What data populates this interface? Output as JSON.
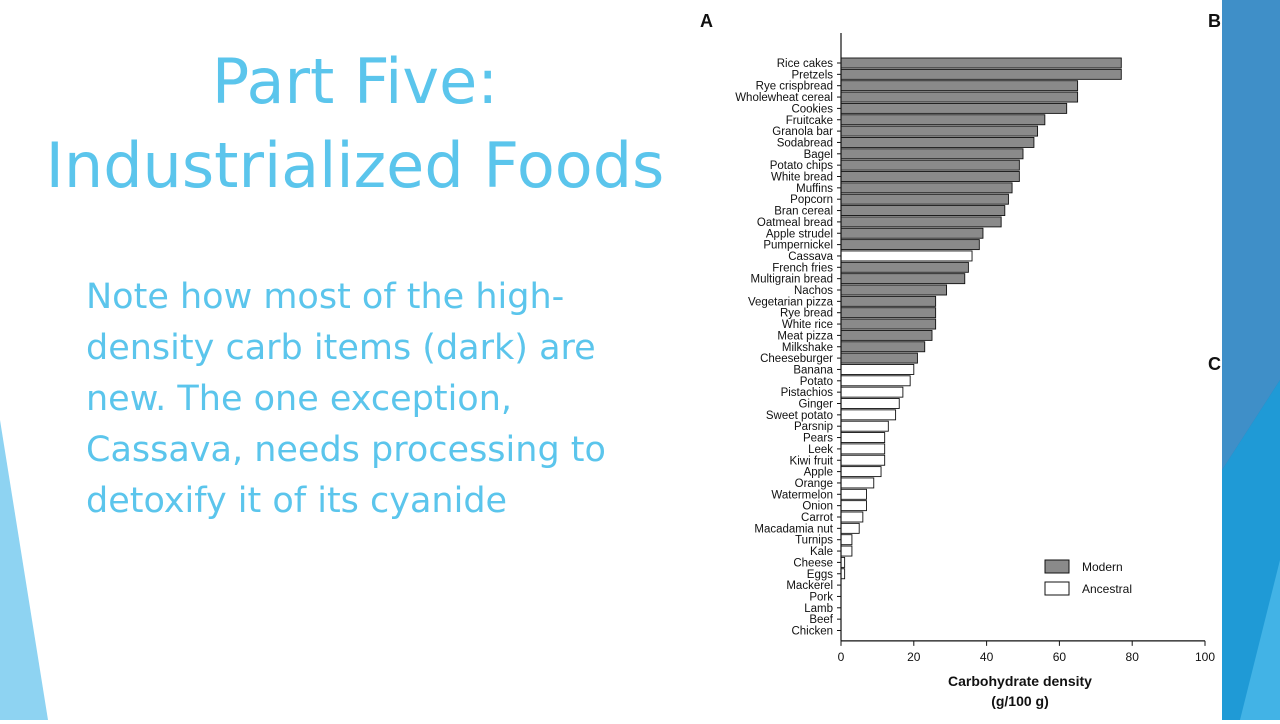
{
  "slide": {
    "title_line1": "Part Five:",
    "title_line2": "Industrialized Foods",
    "body": "Note how most of the high-density carb items (dark) are new. The one exception, Cassava, needs processing to detoxify it of its cyanide"
  },
  "theme": {
    "text_color": "#5BC5EC",
    "accent_dark": "#1F6FA8",
    "accent_light": "#7FD0F0"
  },
  "chart_data": {
    "type": "bar",
    "orientation": "horizontal",
    "panel_labels": [
      "A",
      "B",
      "C"
    ],
    "xlabel_line1": "Carbohydrate density",
    "xlabel_line2": "(g/100 g)",
    "xlim": [
      0,
      100
    ],
    "xticks": [
      "0",
      "20",
      "40",
      "60",
      "80",
      "100"
    ],
    "legend": [
      {
        "name": "Modern",
        "color": "#8a8a8a"
      },
      {
        "name": "Ancestral",
        "color": "#ffffff"
      }
    ],
    "legend_position": "bottom-right",
    "series_colors": {
      "Modern": "#8a8a8a",
      "Ancestral": "#ffffff"
    },
    "categories": [
      "Rice cakes",
      "Pretzels",
      "Rye crispbread",
      "Wholewheat cereal",
      "Cookies",
      "Fruitcake",
      "Granola bar",
      "Sodabread",
      "Bagel",
      "Potato chips",
      "White bread",
      "Muffins",
      "Popcorn",
      "Bran cereal",
      "Oatmeal bread",
      "Apple strudel",
      "Pumpernickel",
      "Cassava",
      "French fries",
      "Multigrain bread",
      "Nachos",
      "Vegetarian pizza",
      "Rye bread",
      "White rice",
      "Meat pizza",
      "Milkshake",
      "Cheeseburger",
      "Banana",
      "Potato",
      "Pistachios",
      "Ginger",
      "Sweet potato",
      "Parsnip",
      "Pears",
      "Leek",
      "Kiwi fruit",
      "Apple",
      "Orange",
      "Watermelon",
      "Onion",
      "Carrot",
      "Macadamia nut",
      "Turnips",
      "Kale",
      "Cheese",
      "Eggs",
      "Mackerel",
      "Pork",
      "Lamb",
      "Beef",
      "Chicken"
    ],
    "values": [
      77,
      77,
      65,
      65,
      62,
      56,
      54,
      53,
      50,
      49,
      49,
      47,
      46,
      45,
      44,
      39,
      38,
      36,
      35,
      34,
      29,
      26,
      26,
      26,
      25,
      23,
      21,
      20,
      19,
      17,
      16,
      15,
      13,
      12,
      12,
      12,
      11,
      9,
      7,
      7,
      6,
      5,
      3,
      3,
      1,
      1,
      0,
      0,
      0,
      0,
      0
    ],
    "groups": [
      "Modern",
      "Modern",
      "Modern",
      "Modern",
      "Modern",
      "Modern",
      "Modern",
      "Modern",
      "Modern",
      "Modern",
      "Modern",
      "Modern",
      "Modern",
      "Modern",
      "Modern",
      "Modern",
      "Modern",
      "Ancestral",
      "Modern",
      "Modern",
      "Modern",
      "Modern",
      "Modern",
      "Modern",
      "Modern",
      "Modern",
      "Modern",
      "Ancestral",
      "Ancestral",
      "Ancestral",
      "Ancestral",
      "Ancestral",
      "Ancestral",
      "Ancestral",
      "Ancestral",
      "Ancestral",
      "Ancestral",
      "Ancestral",
      "Ancestral",
      "Ancestral",
      "Ancestral",
      "Ancestral",
      "Ancestral",
      "Ancestral",
      "Ancestral",
      "Ancestral",
      "Ancestral",
      "Ancestral",
      "Ancestral",
      "Ancestral",
      "Ancestral"
    ]
  }
}
